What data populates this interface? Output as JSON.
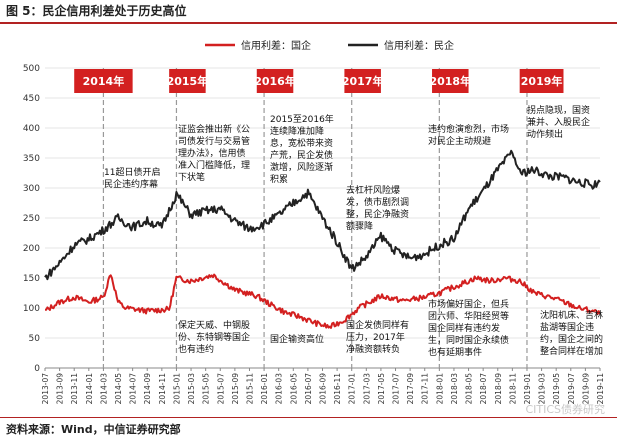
{
  "figure_title": "图 5：民企信用利差处于历史高位",
  "source": "资料来源：Wind，中信证券研究部",
  "watermark": "CITICS债券研究",
  "colors": {
    "soe": "#d32020",
    "private": "#222222",
    "year_box": "#d32020",
    "divider": "#999999"
  },
  "chart_data": {
    "type": "line",
    "title": "",
    "xlabel": "",
    "ylabel": "",
    "ylim": [
      0,
      500
    ],
    "y_ticks": [
      0,
      50,
      100,
      150,
      200,
      250,
      300,
      350,
      400,
      450,
      500
    ],
    "x_range": [
      "2013-07",
      "2019-11"
    ],
    "x_ticks": [
      "2013-07",
      "2013-09",
      "2013-11",
      "2014-01",
      "2014-03",
      "2014-05",
      "2014-07",
      "2014-09",
      "2014-11",
      "2015-01",
      "2015-03",
      "2015-05",
      "2015-07",
      "2015-09",
      "2015-11",
      "2016-01",
      "2016-03",
      "2016-05",
      "2016-07",
      "2016-09",
      "2016-11",
      "2017-01",
      "2017-03",
      "2017-05",
      "2017-07",
      "2017-09",
      "2017-11",
      "2018-01",
      "2018-03",
      "2018-05",
      "2018-07",
      "2018-09",
      "2018-11",
      "2019-01",
      "2019-03",
      "2019-05",
      "2019-07",
      "2019-09",
      "2019-11"
    ],
    "legend": [
      "信用利差：国企",
      "信用利差：民企"
    ],
    "legend_position": "top-center",
    "series": [
      {
        "name": "信用利差：国企",
        "color": "#d32020",
        "points": [
          [
            "2013-07",
            95
          ],
          [
            "2013-09",
            110
          ],
          [
            "2013-11",
            118
          ],
          [
            "2014-01",
            110
          ],
          [
            "2014-03",
            118
          ],
          [
            "2014-04",
            158
          ],
          [
            "2014-05",
            110
          ],
          [
            "2014-06",
            100
          ],
          [
            "2014-09",
            95
          ],
          [
            "2014-12",
            98
          ],
          [
            "2015-01",
            150
          ],
          [
            "2015-03",
            145
          ],
          [
            "2015-06",
            155
          ],
          [
            "2015-09",
            130
          ],
          [
            "2015-12",
            120
          ],
          [
            "2016-02",
            105
          ],
          [
            "2016-04",
            92
          ],
          [
            "2016-06",
            85
          ],
          [
            "2016-08",
            75
          ],
          [
            "2016-10",
            68
          ],
          [
            "2016-12",
            80
          ],
          [
            "2017-02",
            100
          ],
          [
            "2017-05",
            120
          ],
          [
            "2017-08",
            112
          ],
          [
            "2017-11",
            118
          ],
          [
            "2018-01",
            125
          ],
          [
            "2018-03",
            135
          ],
          [
            "2018-06",
            150
          ],
          [
            "2018-08",
            145
          ],
          [
            "2018-10",
            150
          ],
          [
            "2018-12",
            145
          ],
          [
            "2019-02",
            125
          ],
          [
            "2019-05",
            115
          ],
          [
            "2019-08",
            100
          ],
          [
            "2019-10",
            95
          ],
          [
            "2019-11",
            90
          ]
        ]
      },
      {
        "name": "信用利差：民企",
        "color": "#222222",
        "points": [
          [
            "2013-07",
            150
          ],
          [
            "2013-09",
            175
          ],
          [
            "2013-11",
            205
          ],
          [
            "2014-01",
            215
          ],
          [
            "2014-03",
            230
          ],
          [
            "2014-05",
            250
          ],
          [
            "2014-07",
            235
          ],
          [
            "2014-09",
            245
          ],
          [
            "2014-11",
            235
          ],
          [
            "2015-01",
            290
          ],
          [
            "2015-03",
            255
          ],
          [
            "2015-05",
            262
          ],
          [
            "2015-07",
            265
          ],
          [
            "2015-09",
            245
          ],
          [
            "2015-11",
            232
          ],
          [
            "2016-01",
            240
          ],
          [
            "2016-03",
            255
          ],
          [
            "2016-05",
            275
          ],
          [
            "2016-07",
            292
          ],
          [
            "2016-09",
            250
          ],
          [
            "2016-11",
            210
          ],
          [
            "2017-01",
            165
          ],
          [
            "2017-03",
            185
          ],
          [
            "2017-05",
            220
          ],
          [
            "2017-07",
            195
          ],
          [
            "2017-09",
            183
          ],
          [
            "2017-11",
            190
          ],
          [
            "2018-01",
            205
          ],
          [
            "2018-03",
            215
          ],
          [
            "2018-05",
            265
          ],
          [
            "2018-07",
            295
          ],
          [
            "2018-09",
            330
          ],
          [
            "2018-11",
            360
          ],
          [
            "2018-12",
            325
          ],
          [
            "2019-02",
            330
          ],
          [
            "2019-04",
            320
          ],
          [
            "2019-06",
            318
          ],
          [
            "2019-08",
            310
          ],
          [
            "2019-10",
            305
          ],
          [
            "2019-11",
            310
          ]
        ]
      }
    ],
    "year_markers": [
      {
        "label": "2014年",
        "at": "2014-03",
        "box_from": "2013-11",
        "box_to": "2014-07"
      },
      {
        "label": "2015年",
        "at": "2015-01",
        "box_from": "2014-12",
        "box_to": "2015-05"
      },
      {
        "label": "2016年",
        "at": "2016-01",
        "box_from": "2015-12",
        "box_to": "2016-05"
      },
      {
        "label": "2017年",
        "at": "2017-01",
        "box_from": "2016-12",
        "box_to": "2017-05"
      },
      {
        "label": "2018年",
        "at": "2018-01",
        "box_from": "2017-12",
        "box_to": "2018-05"
      },
      {
        "label": "2019年",
        "at": "2019-01",
        "box_from": "2018-12",
        "box_to": "2019-06"
      }
    ],
    "annotations": [
      {
        "id": "a2014top",
        "lines": [
          "11超日债开启",
          "民企违约序幕"
        ]
      },
      {
        "id": "a2015top",
        "lines": [
          "证监会推出新《公",
          "司债发行与交易管",
          "理办法》，信用债",
          "准入门槛降低，理",
          "下状笔"
        ]
      },
      {
        "id": "a2015bot",
        "lines": [
          "保定天威、中钢股",
          "份、东特钢等国企",
          "也有违约"
        ]
      },
      {
        "id": "a2016top",
        "lines": [
          "2015至2016年",
          "连续降准加降",
          "息，宽松带来资",
          "产荒，民企发债",
          "激增，风险逐渐",
          "积累"
        ]
      },
      {
        "id": "a2016bot",
        "lines": [
          "国企输资高位"
        ]
      },
      {
        "id": "a2017top",
        "lines": [
          "去杠杆风险爆",
          "发，债市剧烈调",
          "整，民企净融资",
          "额骤降"
        ]
      },
      {
        "id": "a2017bot",
        "lines": [
          "国企发债同样有",
          "压力，2017年",
          "净融资额转负"
        ]
      },
      {
        "id": "a2018top",
        "lines": [
          "违约愈演愈烈，市场",
          "对民企主动规避"
        ]
      },
      {
        "id": "a2018bot",
        "lines": [
          "市场偏好国企，但兵",
          "团六师、华阳经贸等",
          "国企同样有违约发",
          "生，同时国企永续债",
          "也有延期事件"
        ]
      },
      {
        "id": "a2019top",
        "lines": [
          "拐点隐现，国资",
          "兼并、入股民企",
          "动作频出"
        ]
      },
      {
        "id": "a2019bot",
        "lines": [
          "沈阳机床、吉林",
          "盐湖等国企违",
          "约，国企之间的",
          "整合同样在增加"
        ]
      }
    ]
  }
}
